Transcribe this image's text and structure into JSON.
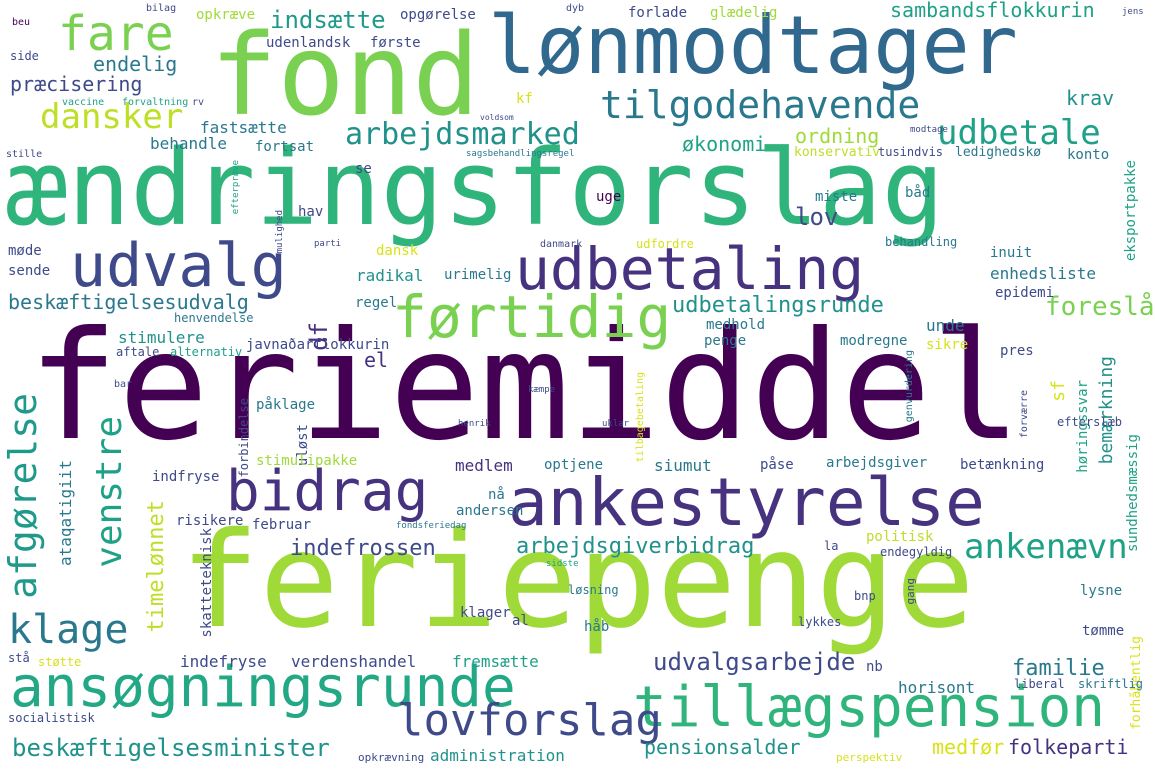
{
  "palette": {
    "dark_purple": "#440154",
    "indigo": "#46327e",
    "slate_blue": "#365c8d",
    "steel_blue": "#277f8e",
    "teal": "#1fa187",
    "green": "#4ac16d",
    "lime": "#a0da39",
    "yellow": "#fde725"
  },
  "words": {
    "feriemiddel": "feriemiddel",
    "feriepenge": "feriepenge",
    "aendringsforslag": "ændringsforslag",
    "fond": "fond",
    "lonmodtager": "lønmodtager",
    "ansogningsrunde": "ansøgningsrunde",
    "tillaegspension": "tillægspension",
    "ankestyrelse": "ankestyrelse",
    "udbetaling": "udbetaling",
    "udvalg": "udvalg",
    "bidrag": "bidrag",
    "fortidig": "førtidig",
    "fare": "fare",
    "tilgodehavende": "tilgodehavende",
    "lovforslag": "lovforslag",
    "arbejdsmarked": "arbejdsmarked",
    "udbetale": "udbetale",
    "dansker": "dansker",
    "afgorelse": "afgørelse",
    "venstre": "venstre",
    "klage": "klage",
    "ankenaevn": "ankenævn",
    "beskaeftigelsesminister": "beskæftigelsesminister",
    "indsaette": "indsætte",
    "sambandsflokkurin": "sambandsflokkurin",
    "endelig": "endelig",
    "praecisering": "præcisering",
    "krav": "krav",
    "okonomi": "økonomi",
    "ordning": "ordning",
    "behandle": "behandle",
    "fastsaette": "fastsætte",
    "fortsat": "fortsat",
    "lov": "lov",
    "hav": "hav",
    "se": "se",
    "bad": "båd",
    "miste": "miste",
    "uge": "uge",
    "udbetalingsrunde": "udbetalingsrunde",
    "radikal": "radikal",
    "urimelig": "urimelig",
    "enhedsliste": "enhedsliste",
    "epidemi": "epidemi",
    "foresla": "foreslå",
    "beskaeftigelsesudvalg": "beskæftigelsesudvalg",
    "stimulere": "stimulere",
    "unde": "unde",
    "regel": "regel",
    "medhold": "medhold",
    "df": "df",
    "el": "el",
    "javnadarflokkurin": "javnaðarflokkurin",
    "modregne": "modregne",
    "penge": "penge",
    "sikre": "sikre",
    "pres": "pres",
    "paklage": "påklage",
    "forbindelse": "forbindelse",
    "ulost": "uløst",
    "medlem": "medlem",
    "siumut": "siumut",
    "stimulipakke": "stimulipakke",
    "arbejdsgiver": "arbejdsgiver",
    "betaenkning": "betænkning",
    "indfryse": "indfryse",
    "optjene": "optjene",
    "pase": "påse",
    "arbejdsgiverbidrag": "arbejdsgiverbidrag",
    "indefrossen": "indefrossen",
    "risikere": "risikere",
    "februar": "februar",
    "andersen": "andersen",
    "na": "nå",
    "politisk": "politisk",
    "endegyldig": "endegyldig",
    "timelonnet": "timelønnet",
    "ataqatigiit": "ataqatigiit",
    "skatteteknisk": "skatteteknisk",
    "klager": "klager",
    "al": "al",
    "hab": "håb",
    "losning": "løsning",
    "bnp": "bnp",
    "lysne": "lysne",
    "tomme": "tømme",
    "lykkes": "lykkes",
    "indefryse": "indefryse",
    "verdenshandel": "verdenshandel",
    "fremsaette": "fremsætte",
    "udvalgsarbejde": "udvalgsarbejde",
    "nb": "nb",
    "familie": "familie",
    "horisont": "horisont",
    "administration": "administration",
    "pensionsalder": "pensionsalder",
    "medfor": "medfør",
    "folkeparti": "folkeparti",
    "opkraeve": "opkræve",
    "opgorelse": "opgørelse",
    "gladelig": "glædelig",
    "forlade": "forlade",
    "udenlandsk": "udenlandsk",
    "forste": "første",
    "kf": "kf",
    "konto": "konto",
    "konservativ": "konservativ",
    "ledighedsko": "ledighedskø",
    "eksportpakke": "eksportpakke",
    "behandling": "behandling",
    "inuit": "inuit",
    "dansk": "dansk",
    "sende": "sende",
    "mode": "møde",
    "danmark": "danmark",
    "udfordre": "udfordre",
    "hoeringssvar": "høringssvar",
    "bemaerkning": "bemærkning",
    "sundhedsmaessig": "sundhedsmæssig",
    "forhabentlig": "forhåbentlig",
    "efterslob": "efterslæb",
    "tusindvis": "tusindvis",
    "aftale": "aftale",
    "alternativ": "alternativ",
    "henvendelse": "henvendelse",
    "sf": "sf",
    "skriftlig": "skriftlig",
    "liberal": "liberal",
    "socialistisk": "socialistisk",
    "perspektiv": "perspektiv",
    "opkraevning": "opkrævning",
    "sta": "stå",
    "stotte": "støtte",
    "side": "side",
    "beu": "beu",
    "bilag": "bilag",
    "dyb": "dyb",
    "jens": "jens",
    "vaccine": "vaccine",
    "forvaltning": "forvaltning",
    "rv": "rv",
    "stille": "stille",
    "sagsbehandlingsregel": "sagsbehandlingsregel",
    "henrik": "henrik",
    "parti": "parti",
    "modtage": "modtage",
    "voldsom": "voldsom",
    "bar": "bar",
    "kampe": "kæmpe",
    "gang": "gang",
    "uklar": "uklar",
    "tilbagebetaling": "tilbagebetaling",
    "genvurdering": "genvurdering",
    "forvaerre": "forværre",
    "la": "la",
    "sidste": "sidste",
    "fondsferiedag": "fondsferiedag",
    "efterprove": "efterprøve",
    "mulighed": "mulighed"
  }
}
